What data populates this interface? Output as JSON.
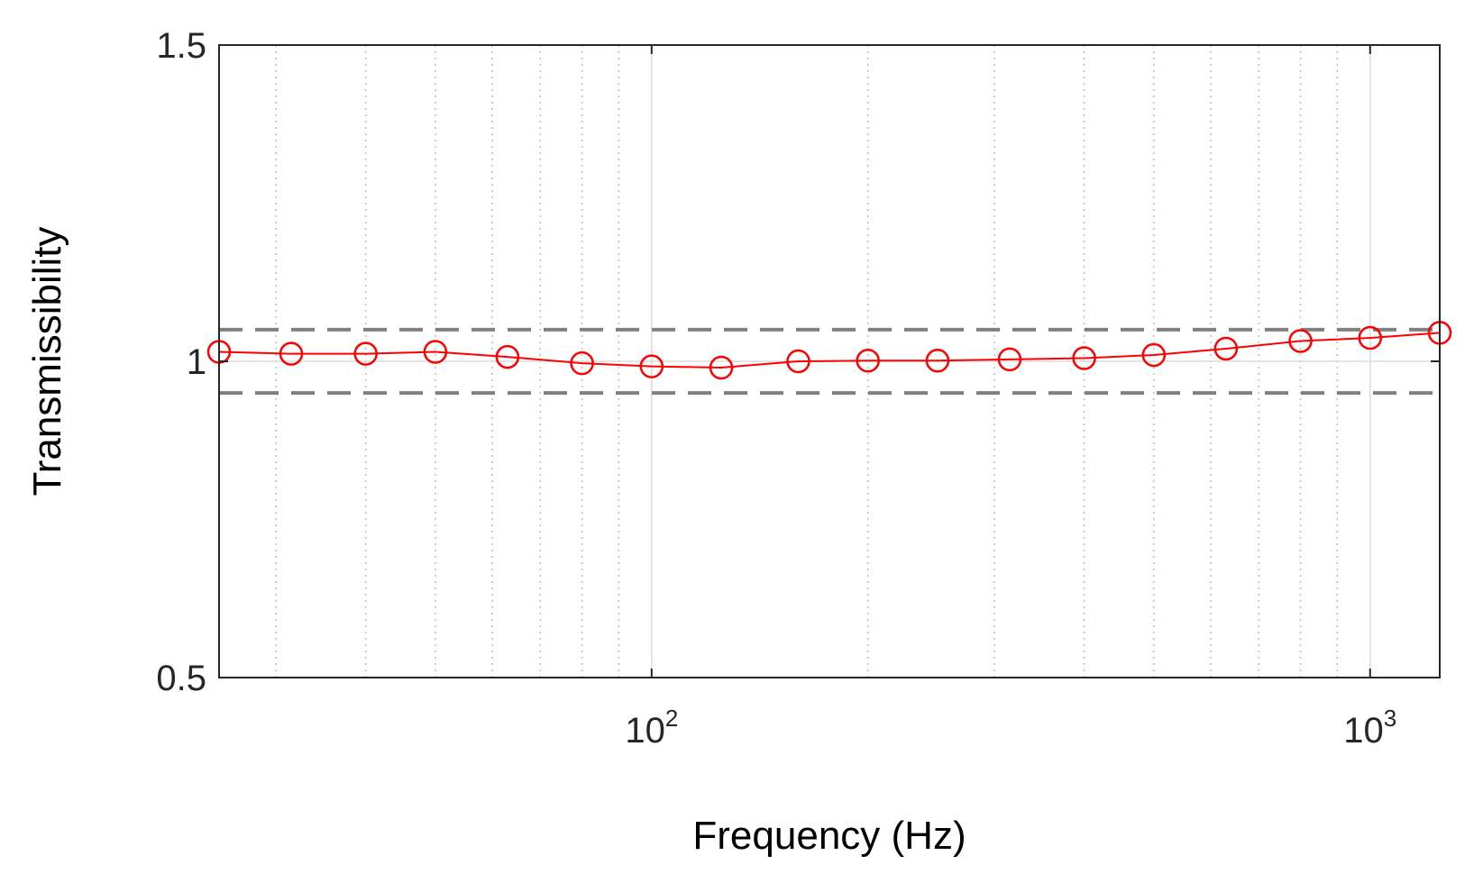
{
  "chart_data": {
    "type": "line",
    "xlabel": "Frequency (Hz)",
    "ylabel": "Transmissibility",
    "xscale": "log",
    "xlim": [
      25,
      1250
    ],
    "ylim": [
      0.5,
      1.5
    ],
    "grid": true,
    "x_ticks": [
      {
        "value": 100,
        "base": "10",
        "exp": "2"
      },
      {
        "value": 1000,
        "base": "10",
        "exp": "3"
      }
    ],
    "y_ticks": [
      {
        "value": 0.5,
        "label": "0.5"
      },
      {
        "value": 1,
        "label": "1"
      },
      {
        "value": 1.5,
        "label": "1.5"
      }
    ],
    "series": [
      {
        "color": "#ff0000",
        "marker": "open-circle",
        "x": [
          25,
          31.5,
          40,
          50,
          63,
          80,
          100,
          125,
          160,
          200,
          250,
          315,
          400,
          500,
          630,
          800,
          1000,
          1250
        ],
        "y": [
          1.015,
          1.012,
          1.012,
          1.015,
          1.007,
          0.997,
          0.992,
          0.99,
          1.0,
          1.001,
          1.001,
          1.003,
          1.005,
          1.01,
          1.02,
          1.032,
          1.037,
          1.045
        ]
      }
    ],
    "reference_lines": [
      {
        "y": 1.05,
        "style": "dashed",
        "color": "#808080"
      },
      {
        "y": 0.95,
        "style": "dashed",
        "color": "#808080"
      }
    ]
  }
}
